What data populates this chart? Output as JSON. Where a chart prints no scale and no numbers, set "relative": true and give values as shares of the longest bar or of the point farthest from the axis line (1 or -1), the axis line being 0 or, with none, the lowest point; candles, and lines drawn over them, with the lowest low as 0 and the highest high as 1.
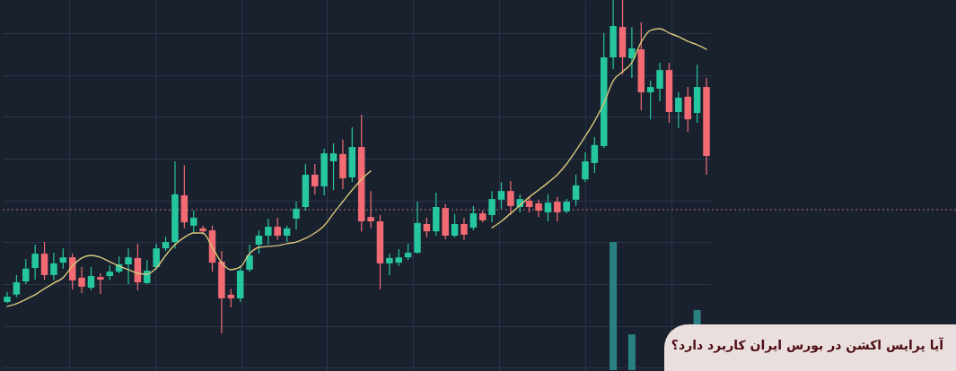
{
  "chart_data": {
    "type": "candlestick",
    "title": "آیا پرایس اکشن در بورس ایران کاربرد دارد؟",
    "relative": true,
    "grid": true,
    "categories": [
      null,
      null,
      null,
      null,
      null,
      null,
      null,
      null,
      null,
      null,
      null,
      null,
      null,
      null,
      null,
      null,
      null,
      null,
      null,
      null,
      null,
      null,
      null,
      null,
      null,
      null,
      null,
      null,
      null,
      null,
      null,
      null,
      null,
      null,
      null,
      null,
      null,
      null,
      null,
      null,
      null,
      null,
      null,
      null,
      null,
      null,
      null,
      null,
      null,
      null,
      null,
      null,
      null,
      null,
      null,
      null,
      null,
      null,
      null,
      null,
      null,
      null,
      null,
      null,
      null,
      null,
      null,
      null,
      null,
      null,
      null,
      null,
      null,
      null,
      null,
      null
    ],
    "ohlc": [
      [
        0.094,
        0.124,
        0.091,
        0.11
      ],
      [
        0.116,
        0.175,
        0.108,
        0.153
      ],
      [
        0.156,
        0.223,
        0.148,
        0.194
      ],
      [
        0.196,
        0.266,
        0.161,
        0.239
      ],
      [
        0.239,
        0.274,
        0.161,
        0.175
      ],
      [
        0.175,
        0.242,
        0.159,
        0.21
      ],
      [
        0.212,
        0.255,
        0.194,
        0.228
      ],
      [
        0.228,
        0.239,
        0.132,
        0.159
      ],
      [
        0.167,
        0.199,
        0.121,
        0.14
      ],
      [
        0.137,
        0.199,
        0.129,
        0.172
      ],
      [
        0.169,
        0.18,
        0.118,
        0.161
      ],
      [
        0.172,
        0.204,
        0.159,
        0.185
      ],
      [
        0.185,
        0.231,
        0.18,
        0.207
      ],
      [
        0.207,
        0.255,
        0.148,
        0.228
      ],
      [
        0.226,
        0.269,
        0.129,
        0.153
      ],
      [
        0.151,
        0.22,
        0.148,
        0.188
      ],
      [
        0.199,
        0.269,
        0.191,
        0.255
      ],
      [
        0.255,
        0.29,
        0.247,
        0.274
      ],
      [
        0.274,
        0.516,
        0.255,
        0.417
      ],
      [
        0.414,
        0.505,
        0.315,
        0.333
      ],
      [
        0.323,
        0.368,
        0.301,
        0.347
      ],
      [
        0.315,
        0.323,
        0.296,
        0.306
      ],
      [
        0.309,
        0.323,
        0.185,
        0.212
      ],
      [
        0.215,
        0.247,
        0,
        0.105
      ],
      [
        0.116,
        0.134,
        0.078,
        0.105
      ],
      [
        0.105,
        0.202,
        0.094,
        0.188
      ],
      [
        0.191,
        0.266,
        0.185,
        0.234
      ],
      [
        0.266,
        0.309,
        0.239,
        0.293
      ],
      [
        0.293,
        0.344,
        0.266,
        0.32
      ],
      [
        0.32,
        0.347,
        0.28,
        0.293
      ],
      [
        0.293,
        0.323,
        0.274,
        0.315
      ],
      [
        0.344,
        0.395,
        0.312,
        0.374
      ],
      [
        0.379,
        0.508,
        0.368,
        0.476
      ],
      [
        0.476,
        0.508,
        0.417,
        0.441
      ],
      [
        0.441,
        0.554,
        0.414,
        0.54
      ],
      [
        0.516,
        0.57,
        0.43,
        0.54
      ],
      [
        0.538,
        0.581,
        0.433,
        0.465
      ],
      [
        0.468,
        0.618,
        0.454,
        0.559
      ],
      [
        0.559,
        0.656,
        0.306,
        0.336
      ],
      [
        0.349,
        0.427,
        0.315,
        0.336
      ],
      [
        0.336,
        0.355,
        0.132,
        0.21
      ],
      [
        0.21,
        0.239,
        0.175,
        0.226
      ],
      [
        0.212,
        0.253,
        0.202,
        0.228
      ],
      [
        0.228,
        0.269,
        0.22,
        0.242
      ],
      [
        0.242,
        0.395,
        0.239,
        0.331
      ],
      [
        0.328,
        0.347,
        0.288,
        0.306
      ],
      [
        0.306,
        0.422,
        0.293,
        0.379
      ],
      [
        0.376,
        0.387,
        0.282,
        0.293
      ],
      [
        0.293,
        0.358,
        0.288,
        0.328
      ],
      [
        0.328,
        0.347,
        0.28,
        0.296
      ],
      [
        0.317,
        0.382,
        0.309,
        0.36
      ],
      [
        0.36,
        0.368,
        0.333,
        0.339
      ],
      [
        0.355,
        0.427,
        0.333,
        0.403
      ],
      [
        0.401,
        0.454,
        0.374,
        0.427
      ],
      [
        0.427,
        0.457,
        0.355,
        0.382
      ],
      [
        0.379,
        0.417,
        0.363,
        0.403
      ],
      [
        0.398,
        0.409,
        0.363,
        0.379
      ],
      [
        0.39,
        0.401,
        0.349,
        0.368
      ],
      [
        0.363,
        0.417,
        0.336,
        0.392
      ],
      [
        0.395,
        0.409,
        0.336,
        0.363
      ],
      [
        0.366,
        0.403,
        0.36,
        0.395
      ],
      [
        0.401,
        0.476,
        0.382,
        0.444
      ],
      [
        0.462,
        0.543,
        0.454,
        0.516
      ],
      [
        0.511,
        0.589,
        0.481,
        0.565
      ],
      [
        0.562,
        0.901,
        0.556,
        0.828
      ],
      [
        0.828,
        1,
        0.793,
        0.922
      ],
      [
        0.919,
        1,
        0.777,
        0.828
      ],
      [
        0.825,
        0.919,
        0.766,
        0.855
      ],
      [
        0.852,
        0.933,
        0.669,
        0.723
      ],
      [
        0.723,
        0.758,
        0.642,
        0.739
      ],
      [
        0.734,
        0.812,
        0.696,
        0.79
      ],
      [
        0.79,
        0.812,
        0.632,
        0.664
      ],
      [
        0.664,
        0.723,
        0.616,
        0.707
      ],
      [
        0.71,
        0.739,
        0.605,
        0.642
      ],
      [
        0.661,
        0.806,
        0.632,
        0.739
      ],
      [
        0.739,
        0.766,
        0.476,
        0.532
      ]
    ],
    "colors": [
      "#26c6a0",
      "#26c6a0",
      "#26c6a0",
      "#26c6a0",
      "#f26b73",
      "#26c6a0",
      "#26c6a0",
      "#f26b73",
      "#f26b73",
      "#26c6a0",
      "#f26b73",
      "#26c6a0",
      "#26c6a0",
      "#26c6a0",
      "#f26b73",
      "#26c6a0",
      "#26c6a0",
      "#26c6a0",
      "#26c6a0",
      "#f26b73",
      "#26c6a0",
      "#f26b73",
      "#f26b73",
      "#f26b73",
      "#f26b73",
      "#26c6a0",
      "#26c6a0",
      "#26c6a0",
      "#26c6a0",
      "#f26b73",
      "#26c6a0",
      "#26c6a0",
      "#26c6a0",
      "#f26b73",
      "#26c6a0",
      "#26c6a0",
      "#f26b73",
      "#26c6a0",
      "#f26b73",
      "#f26b73",
      "#f26b73",
      "#26c6a0",
      "#26c6a0",
      "#26c6a0",
      "#26c6a0",
      "#f26b73",
      "#26c6a0",
      "#f26b73",
      "#26c6a0",
      "#f26b73",
      "#26c6a0",
      "#f26b73",
      "#26c6a0",
      "#26c6a0",
      "#f26b73",
      "#26c6a0",
      "#f26b73",
      "#f26b73",
      "#26c6a0",
      "#f26b73",
      "#26c6a0",
      "#26c6a0",
      "#26c6a0",
      "#26c6a0",
      "#26c6a0",
      "#26c6a0",
      "#f26b73",
      "#26c6a0",
      "#f26b73",
      "#26c6a0",
      "#26c6a0",
      "#f26b73",
      "#26c6a0",
      "#f26b73",
      "#26c6a0",
      "#f26b73"
    ],
    "series": [
      {
        "type": "bar",
        "color": "#2b8084",
        "base": [
          null,
          null,
          null,
          null,
          null,
          null,
          null,
          null,
          null,
          null,
          null,
          null,
          null,
          null,
          null,
          null,
          null,
          null,
          null,
          null,
          null,
          null,
          null,
          null,
          null,
          null,
          null,
          null,
          null,
          null,
          null,
          null,
          null,
          null,
          null,
          null,
          null,
          null,
          null,
          null,
          null,
          null,
          null,
          null,
          null,
          null,
          null,
          null,
          null,
          null,
          null,
          null,
          null,
          null,
          null,
          null,
          null,
          null,
          null,
          null,
          null,
          null,
          null,
          null,
          null,
          -0.11,
          null,
          -0.11,
          null,
          null,
          null,
          null,
          null,
          null,
          -0.11,
          null
        ],
        "values": [
          null,
          null,
          null,
          null,
          null,
          null,
          null,
          null,
          null,
          null,
          null,
          null,
          null,
          null,
          null,
          null,
          null,
          null,
          null,
          null,
          null,
          null,
          null,
          null,
          null,
          null,
          null,
          null,
          null,
          null,
          null,
          null,
          null,
          null,
          null,
          null,
          null,
          null,
          null,
          null,
          null,
          null,
          null,
          null,
          null,
          null,
          null,
          null,
          null,
          null,
          null,
          null,
          null,
          null,
          null,
          null,
          null,
          null,
          null,
          null,
          null,
          null,
          null,
          null,
          null,
          0.384,
          null,
          0.107,
          null,
          null,
          null,
          null,
          null,
          null,
          0.18,
          null
        ]
      },
      {
        "type": "line",
        "color": "#d8c87a",
        "values": [
          0.081,
          0.089,
          0.102,
          0.116,
          0.134,
          0.151,
          0.167,
          0.202,
          0.226,
          0.234,
          0.228,
          0.215,
          0.202,
          0.191,
          0.18,
          0.177,
          0.196,
          0.234,
          0.266,
          0.288,
          0.301,
          0.301,
          0.258,
          0.212,
          0.191,
          0.199,
          0.239,
          0.258,
          0.261,
          0.263,
          0.269,
          0.274,
          0.285,
          0.301,
          0.323,
          0.36,
          0.395,
          0.43,
          0.462,
          0.487,
          null,
          null,
          null,
          null,
          null,
          null,
          null,
          null,
          null,
          null,
          null,
          null,
          0.317,
          0.336,
          0.36,
          0.384,
          0.409,
          0.43,
          0.452,
          0.476,
          0.508,
          0.548,
          0.591,
          0.637,
          0.691,
          0.758,
          0.785,
          0.812,
          0.874,
          0.909,
          0.914,
          0.901,
          0.89,
          0.876,
          0.866,
          0.852
        ]
      }
    ],
    "ref_lines": [
      {
        "axis": "y",
        "value": 0.371,
        "color": "#b3707e",
        "line_style": "dotted"
      }
    ]
  }
}
